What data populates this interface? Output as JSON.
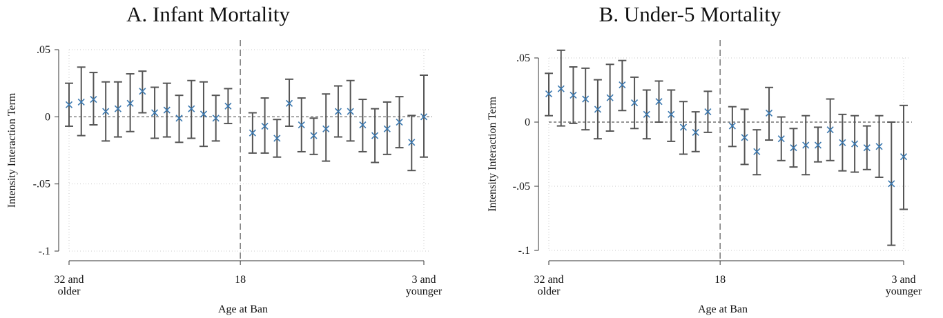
{
  "panels": [
    {
      "title": "A. Infant Mortality"
    },
    {
      "title": "B. Under-5 Mortality"
    }
  ],
  "chart_data": [
    {
      "type": "scatter",
      "title": "A. Infant Mortality",
      "xlabel": "Age at Ban",
      "ylabel": "Intensity Interaction Term",
      "ylim": [
        -0.1,
        0.05
      ],
      "yticks": [
        0.05,
        0,
        -0.05,
        -0.1
      ],
      "ytick_labels": [
        ".05",
        "0",
        "-.05",
        "-.1"
      ],
      "xlim": [
        32,
        3
      ],
      "xticks": [
        32,
        18,
        3
      ],
      "xtick_labels": [
        "32 and\nolder",
        "18",
        "3 and\nyounger"
      ],
      "reference_vline": 18,
      "reference_hline": 0,
      "marker": "x",
      "marker_color": "#3a78b0",
      "errorbar_color": "#555555",
      "grid": true,
      "x": [
        32,
        31,
        30,
        29,
        28,
        27,
        26,
        25,
        24,
        23,
        22,
        21,
        20,
        19,
        17,
        16,
        15,
        14,
        13,
        12,
        11,
        10,
        9,
        8,
        7,
        6,
        5,
        4,
        3
      ],
      "y": [
        0.009,
        0.011,
        0.013,
        0.004,
        0.006,
        0.01,
        0.019,
        0.003,
        0.005,
        -0.001,
        0.006,
        0.002,
        -0.001,
        0.008,
        -0.012,
        -0.007,
        -0.016,
        0.01,
        -0.006,
        -0.014,
        -0.009,
        0.004,
        0.004,
        -0.006,
        -0.014,
        -0.009,
        -0.004,
        -0.019,
        0.0
      ],
      "ci_low": [
        -0.007,
        -0.014,
        -0.006,
        -0.018,
        -0.015,
        -0.011,
        0.003,
        -0.016,
        -0.015,
        -0.019,
        -0.016,
        -0.022,
        -0.018,
        -0.005,
        -0.027,
        -0.027,
        -0.03,
        -0.007,
        -0.026,
        -0.028,
        -0.033,
        -0.015,
        -0.018,
        -0.026,
        -0.034,
        -0.028,
        -0.023,
        -0.04,
        -0.03
      ],
      "ci_high": [
        0.025,
        0.037,
        0.033,
        0.026,
        0.026,
        0.032,
        0.034,
        0.022,
        0.025,
        0.016,
        0.027,
        0.026,
        0.016,
        0.021,
        0.003,
        0.014,
        -0.002,
        0.028,
        0.014,
        -0.001,
        0.017,
        0.023,
        0.027,
        0.013,
        0.006,
        0.011,
        0.015,
        0.001,
        0.031
      ]
    },
    {
      "type": "scatter",
      "title": "B. Under-5 Mortality",
      "xlabel": "Age at Ban",
      "ylabel": "Intensity Interaction Term",
      "ylim": [
        -0.1,
        0.05
      ],
      "yticks": [
        0.05,
        0,
        -0.05,
        -0.1
      ],
      "ytick_labels": [
        ".05",
        "0",
        "-.05",
        "-.1"
      ],
      "xlim": [
        32,
        3
      ],
      "xticks": [
        32,
        18,
        3
      ],
      "xtick_labels": [
        "32 and\nolder",
        "18",
        "3 and\nyounger"
      ],
      "reference_vline": 18,
      "reference_hline": 0,
      "marker": "x",
      "marker_color": "#3a78b0",
      "errorbar_color": "#555555",
      "grid": true,
      "x": [
        32,
        31,
        30,
        29,
        28,
        27,
        26,
        25,
        24,
        23,
        22,
        21,
        20,
        19,
        17,
        16,
        15,
        14,
        13,
        12,
        11,
        10,
        9,
        8,
        7,
        6,
        5,
        4,
        3
      ],
      "y": [
        0.022,
        0.026,
        0.021,
        0.018,
        0.01,
        0.019,
        0.029,
        0.015,
        0.006,
        0.016,
        0.006,
        -0.004,
        -0.008,
        0.008,
        -0.003,
        -0.012,
        -0.023,
        0.007,
        -0.013,
        -0.02,
        -0.018,
        -0.018,
        -0.006,
        -0.016,
        -0.017,
        -0.02,
        -0.019,
        -0.048,
        -0.027
      ],
      "ci_low": [
        0.005,
        -0.003,
        -0.001,
        -0.006,
        -0.013,
        -0.007,
        0.009,
        -0.005,
        -0.013,
        0.0,
        -0.015,
        -0.025,
        -0.023,
        -0.008,
        -0.019,
        -0.033,
        -0.041,
        -0.014,
        -0.03,
        -0.035,
        -0.041,
        -0.031,
        -0.03,
        -0.038,
        -0.039,
        -0.037,
        -0.043,
        -0.096,
        -0.068
      ],
      "ci_high": [
        0.038,
        0.056,
        0.043,
        0.042,
        0.033,
        0.045,
        0.048,
        0.035,
        0.025,
        0.032,
        0.025,
        0.016,
        0.008,
        0.024,
        0.012,
        0.01,
        -0.006,
        0.027,
        0.004,
        -0.005,
        0.005,
        -0.004,
        0.018,
        0.006,
        0.005,
        -0.003,
        0.005,
        0.0,
        0.013
      ]
    }
  ]
}
